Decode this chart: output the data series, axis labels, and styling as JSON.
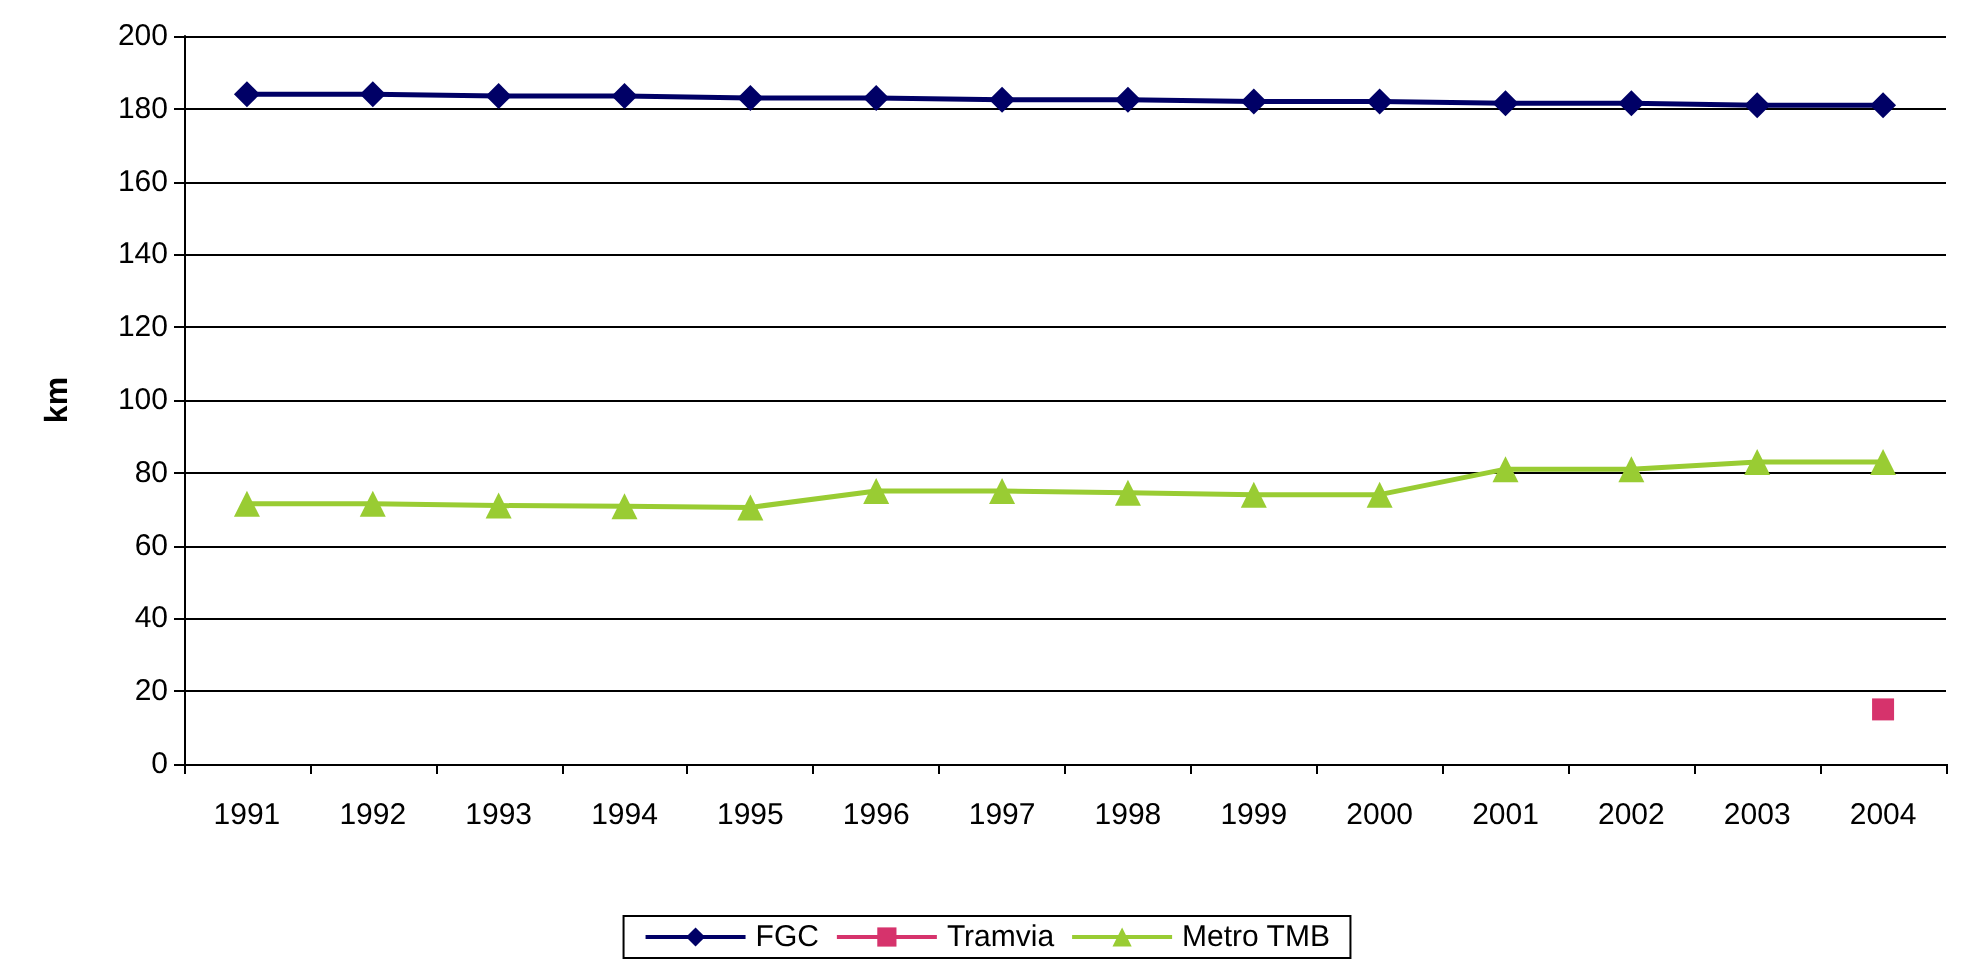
{
  "chart_data": {
    "type": "line",
    "ylabel": "km",
    "categories": [
      "1991",
      "1992",
      "1993",
      "1994",
      "1995",
      "1996",
      "1997",
      "1998",
      "1999",
      "2000",
      "2001",
      "2002",
      "2003",
      "2004"
    ],
    "series": [
      {
        "name": "FGC",
        "color": "#000066",
        "marker": "diamond",
        "values": [
          184,
          184,
          183.5,
          183.5,
          183,
          183,
          182.5,
          182.5,
          182,
          182,
          181.5,
          181.5,
          181,
          181
        ]
      },
      {
        "name": "Tramvia",
        "color": "#d6336c",
        "marker": "square",
        "values": [
          null,
          null,
          null,
          null,
          null,
          null,
          null,
          null,
          null,
          null,
          null,
          null,
          null,
          15
        ]
      },
      {
        "name": "Metro TMB",
        "color": "#99cc33",
        "marker": "triangle",
        "values": [
          71.5,
          71.5,
          71,
          70.8,
          70.5,
          75,
          75,
          74.5,
          74,
          74,
          81,
          81,
          83,
          83
        ]
      }
    ],
    "ylim": [
      0,
      200
    ],
    "yticks": [
      0,
      20,
      40,
      60,
      80,
      100,
      120,
      140,
      160,
      180,
      200
    ],
    "grid": "y",
    "legend": "bottom"
  }
}
